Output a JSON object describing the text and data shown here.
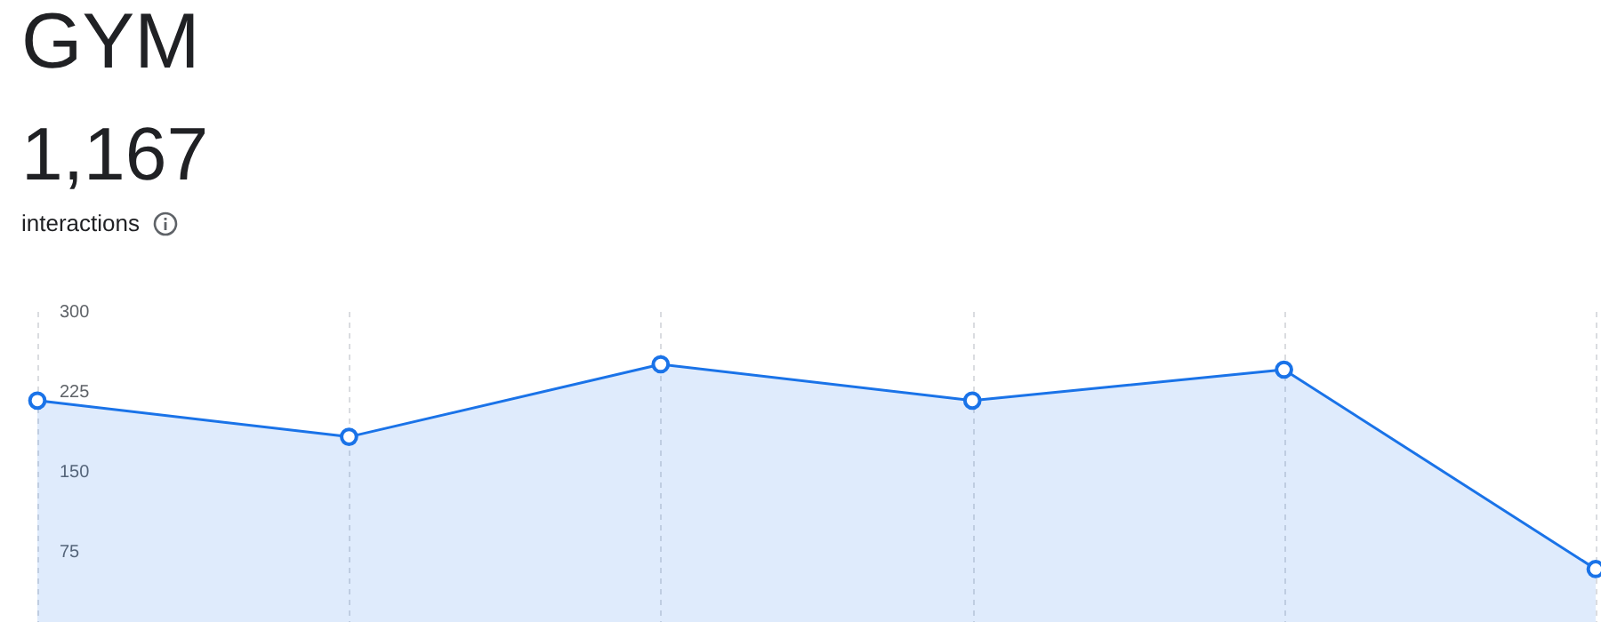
{
  "chart_data": {
    "type": "area",
    "title": "GYM",
    "subtitle": "1,167",
    "annotations": [
      "interactions"
    ],
    "categories": [
      null,
      null,
      null,
      null,
      null,
      null
    ],
    "series": [
      {
        "color": "#1a73e8",
        "values": [
          216,
          182,
          250,
          216,
          245,
          58
        ]
      }
    ],
    "ylim": [
      0,
      300
    ],
    "yticks": [
      75,
      150,
      225,
      300
    ],
    "grid": "x",
    "marker": "circle"
  }
}
